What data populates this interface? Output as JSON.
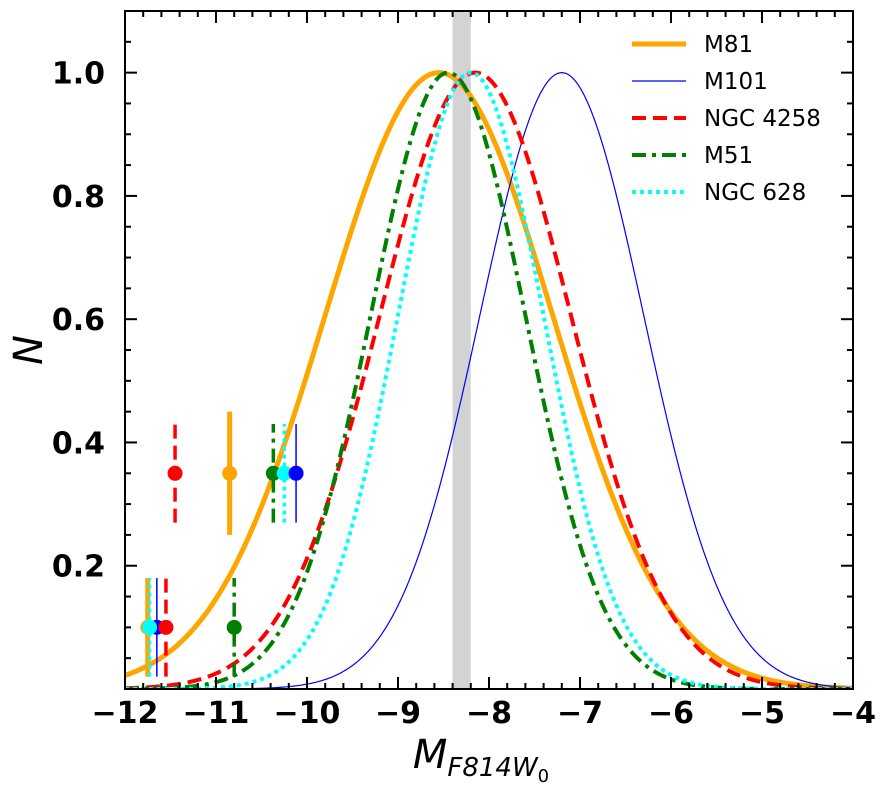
{
  "chart_data": {
    "type": "line",
    "xlabel": "M",
    "xlabel_sub": "F814W",
    "xlabel_subsub": "0",
    "ylabel": "N",
    "xlim": [
      -12,
      -4
    ],
    "ylim": [
      0,
      1.1
    ],
    "xticks": [
      -12,
      -11,
      -10,
      -9,
      -8,
      -7,
      -6,
      -5,
      -4
    ],
    "xtick_labels": [
      "−12",
      "−11",
      "−10",
      "−9",
      "−8",
      "−7",
      "−6",
      "−5",
      "−4"
    ],
    "yticks": [
      0.2,
      0.4,
      0.6,
      0.8,
      1.0
    ],
    "ytick_labels": [
      "0.2",
      "0.4",
      "0.6",
      "0.8",
      "1.0"
    ],
    "shaded_band": {
      "x_range": [
        -8.4,
        -8.2
      ],
      "color": "#d3d3d3"
    },
    "legend_position": "top-right",
    "series": [
      {
        "name": "M81",
        "color": "#ffa500",
        "dash": "solid",
        "width": 5,
        "mu": -8.55,
        "sigma": 1.25
      },
      {
        "name": "M101",
        "color": "#0000ff",
        "dash": "solid",
        "width": 1.2,
        "mu": -7.2,
        "sigma": 0.9
      },
      {
        "name": "NGC 4258",
        "color": "#ff0000",
        "dash": "dashed",
        "width": 4,
        "mu": -8.15,
        "sigma": 1.05
      },
      {
        "name": "M51",
        "color": "#008000",
        "dash": "dashdot",
        "width": 4,
        "mu": -8.45,
        "sigma": 0.85
      },
      {
        "name": "NGC 628",
        "color": "#00ffff",
        "dash": "dotted",
        "width": 4,
        "mu": -8.2,
        "sigma": 0.8
      }
    ],
    "markers": [
      {
        "series": "NGC 4258",
        "x": -11.45,
        "y": 0.35,
        "yerr": 0.08,
        "dash": "dashed"
      },
      {
        "series": "M81",
        "x": -10.85,
        "y": 0.35,
        "yerr": 0.1,
        "dash": "solid"
      },
      {
        "series": "M51",
        "x": -10.37,
        "y": 0.35,
        "yerr": 0.08,
        "dash": "dashdot"
      },
      {
        "series": "NGC 628",
        "x": -10.25,
        "y": 0.35,
        "yerr": 0.08,
        "dash": "dotted"
      },
      {
        "series": "M101",
        "x": -10.12,
        "y": 0.35,
        "yerr": 0.08,
        "dash": "solid"
      },
      {
        "series": "M81",
        "x": -11.75,
        "y": 0.1,
        "yerr": 0.08,
        "dash": "solid"
      },
      {
        "series": "M101",
        "x": -11.65,
        "y": 0.1,
        "yerr": 0.08,
        "dash": "solid"
      },
      {
        "series": "NGC 4258",
        "x": -11.55,
        "y": 0.1,
        "yerr": 0.08,
        "dash": "dashed"
      },
      {
        "series": "NGC 628",
        "x": -11.73,
        "y": 0.1,
        "yerr": 0.08,
        "dash": "dotted"
      },
      {
        "series": "M51",
        "x": -10.8,
        "y": 0.1,
        "yerr": 0.08,
        "dash": "dashdot"
      }
    ]
  }
}
